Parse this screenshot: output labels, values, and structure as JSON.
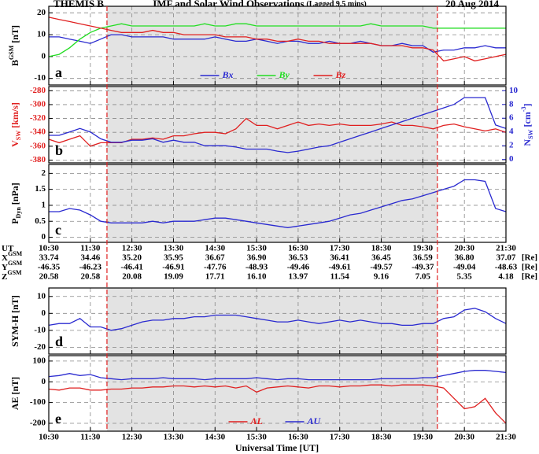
{
  "header": {
    "left": "THEMIS B",
    "title": "IMF and Solar Wind Observations",
    "subtitle": "(Lagged 9.5 mins)",
    "right": "20 Aug 2014"
  },
  "times": {
    "label": "Universal Time [UT]",
    "xlim": [
      10.5,
      21.5
    ],
    "xticks": [
      {
        "value": 10.5,
        "label": "10:30"
      },
      {
        "value": 11.5,
        "label": "11:30"
      },
      {
        "value": 12.5,
        "label": "12:30"
      },
      {
        "value": 13.5,
        "label": "13:30"
      },
      {
        "value": 14.5,
        "label": "14:30"
      },
      {
        "value": 15.5,
        "label": "15:30"
      },
      {
        "value": 16.5,
        "label": "16:30"
      },
      {
        "value": 17.5,
        "label": "17:30"
      },
      {
        "value": 18.5,
        "label": "18:30"
      },
      {
        "value": 19.5,
        "label": "19:30"
      },
      {
        "value": 20.5,
        "label": "20:30"
      },
      {
        "value": 21.5,
        "label": "21:30"
      }
    ],
    "x": [
      10.5,
      10.75,
      11,
      11.25,
      11.5,
      11.75,
      12,
      12.25,
      12.5,
      12.75,
      13,
      13.25,
      13.5,
      13.75,
      14,
      14.25,
      14.5,
      14.75,
      15,
      15.25,
      15.5,
      15.75,
      16,
      16.25,
      16.5,
      16.75,
      17,
      17.25,
      17.5,
      17.75,
      18,
      18.25,
      18.5,
      18.75,
      19,
      19.25,
      19.5,
      19.75,
      20,
      20.25,
      20.5,
      20.75,
      21,
      21.25,
      21.5
    ],
    "shaded_interval": [
      11.9,
      19.85
    ]
  },
  "chart_data": [
    {
      "type": "line",
      "panel": "a",
      "grid": true,
      "ylabel": [
        {
          "text": "B"
        },
        {
          "text": "GSM",
          "pos": "sup"
        },
        {
          "text": " [nT]"
        }
      ],
      "ylim": [
        -13,
        23
      ],
      "yticks": [
        -10,
        0,
        10,
        20
      ],
      "series": [
        {
          "name": "Bx",
          "color": "#2a2ad0",
          "values": [
            9,
            9,
            8,
            7,
            6,
            8,
            10,
            10,
            9,
            9,
            9,
            9,
            8,
            8,
            8,
            8,
            9,
            8,
            7,
            7,
            8,
            7,
            6,
            7,
            7,
            6,
            6,
            7,
            6,
            6,
            7,
            6,
            5,
            5,
            6,
            5,
            5,
            2,
            3,
            3,
            4,
            4,
            5,
            4,
            4
          ]
        },
        {
          "name": "By",
          "color": "#22dd22",
          "values": [
            0,
            1,
            4,
            8,
            11,
            13,
            14,
            15,
            14,
            14,
            14,
            14,
            14,
            14,
            14,
            15,
            14,
            14,
            15,
            15,
            14,
            14,
            14,
            14,
            14,
            14,
            14,
            14,
            14,
            14,
            14,
            15,
            14,
            14,
            14,
            14,
            14,
            13,
            13,
            13,
            13,
            13,
            13,
            13,
            13
          ]
        },
        {
          "name": "Bz",
          "color": "#e02020",
          "values": [
            18,
            17,
            16,
            15,
            14,
            13,
            12,
            11,
            11,
            11,
            12,
            11,
            11,
            10,
            10,
            10,
            10,
            9,
            9,
            9,
            8,
            8,
            7,
            7,
            8,
            7,
            7,
            6,
            6,
            6,
            6,
            6,
            5,
            5,
            5,
            4,
            4,
            3,
            -2,
            -1,
            0,
            -2,
            -1,
            0,
            1
          ]
        }
      ]
    },
    {
      "type": "line",
      "panel": "b",
      "grid": true,
      "ylabel": [
        {
          "text": "V"
        },
        {
          "text": "SW",
          "pos": "sub"
        },
        {
          "text": " [km/s]"
        }
      ],
      "ylabel_color": "#e02020",
      "y2label": [
        {
          "text": "N"
        },
        {
          "text": "SW",
          "pos": "sub"
        },
        {
          "text": " [cm"
        },
        {
          "text": "-3",
          "pos": "sup"
        },
        {
          "text": "]"
        }
      ],
      "y2label_color": "#2a2ad0",
      "ylim": [
        -384,
        -274
      ],
      "yticks": [
        -380,
        -360,
        -340,
        -320,
        -300,
        -280
      ],
      "y2lim": [
        -0.5,
        10.6
      ],
      "y2ticks": [
        0,
        2,
        4,
        6,
        8,
        10
      ],
      "series": [
        {
          "name": "Vsw",
          "color": "#e02020",
          "values": [
            -350,
            -355,
            -350,
            -345,
            -360,
            -355,
            -355,
            -355,
            -350,
            -350,
            -348,
            -350,
            -345,
            -345,
            -342,
            -340,
            -340,
            -342,
            -335,
            -320,
            -330,
            -330,
            -335,
            -330,
            -325,
            -330,
            -328,
            -330,
            -328,
            -330,
            -330,
            -330,
            -328,
            -325,
            -330,
            -330,
            -332,
            -335,
            -330,
            -328,
            -332,
            -335,
            -338,
            -335,
            -340
          ]
        },
        {
          "name": "Nsw",
          "color": "#2a2ad0",
          "axis": "y2",
          "values": [
            3.5,
            3.5,
            4,
            4.5,
            4,
            3,
            2.5,
            2.5,
            2.8,
            2.8,
            3,
            2.5,
            2.8,
            2.5,
            2.5,
            2,
            2,
            2,
            1.8,
            1.5,
            1.5,
            1.5,
            1.2,
            1,
            1.2,
            1.5,
            1.8,
            2,
            2.5,
            3,
            3.5,
            4,
            4.5,
            5,
            5.5,
            6,
            6.5,
            7,
            7.5,
            8,
            9,
            9,
            9,
            5,
            4.5
          ]
        }
      ]
    },
    {
      "type": "line",
      "panel": "c",
      "grid": true,
      "ylabel": [
        {
          "text": "P"
        },
        {
          "text": "Dyn",
          "pos": "sub"
        },
        {
          "text": " [nPa]"
        }
      ],
      "ylim": [
        -0.16,
        2.28
      ],
      "yticks": [
        0,
        0.5,
        1,
        1.5,
        2
      ],
      "series": [
        {
          "name": "Pdyn",
          "color": "#2a2ad0",
          "values": [
            0.8,
            0.8,
            0.9,
            0.85,
            0.7,
            0.5,
            0.45,
            0.45,
            0.45,
            0.45,
            0.5,
            0.45,
            0.5,
            0.5,
            0.5,
            0.55,
            0.6,
            0.6,
            0.55,
            0.5,
            0.45,
            0.4,
            0.35,
            0.3,
            0.35,
            0.4,
            0.45,
            0.5,
            0.6,
            0.7,
            0.75,
            0.85,
            0.95,
            1.05,
            1.15,
            1.2,
            1.3,
            1.4,
            1.5,
            1.6,
            1.8,
            1.8,
            1.75,
            0.9,
            0.8
          ]
        }
      ]
    },
    {
      "type": "line",
      "panel": "d",
      "grid": true,
      "ylabel": [
        {
          "text": "SYM-H [nT]"
        }
      ],
      "ylim": [
        -24,
        15
      ],
      "yticks": [
        -20,
        -10,
        0,
        10
      ],
      "series": [
        {
          "name": "SYM-H",
          "color": "#2a2ad0",
          "values": [
            -7,
            -6,
            -6,
            -3,
            -8,
            -8,
            -10,
            -9,
            -7,
            -5,
            -4,
            -4,
            -3,
            -3,
            -2,
            -2,
            -1,
            -1,
            -1,
            -2,
            -3,
            -4,
            -5,
            -5,
            -4,
            -5,
            -6,
            -5,
            -4,
            -5,
            -4,
            -5,
            -6,
            -6,
            -7,
            -7,
            -6,
            -6,
            -3,
            -2,
            2,
            3,
            1,
            -3,
            -6
          ]
        }
      ]
    },
    {
      "type": "line",
      "panel": "e",
      "grid": true,
      "ylabel": [
        {
          "text": "AE [nT]"
        }
      ],
      "ylim": [
        -238,
        126
      ],
      "yticks": [
        -200,
        -100,
        0,
        100
      ],
      "series": [
        {
          "name": "AL",
          "color": "#e02020",
          "values": [
            -35,
            -40,
            -30,
            -30,
            -40,
            -40,
            -35,
            -35,
            -30,
            -30,
            -25,
            -25,
            -20,
            -20,
            -25,
            -20,
            -25,
            -20,
            -30,
            -20,
            -50,
            -30,
            -25,
            -20,
            -25,
            -30,
            -20,
            -20,
            -25,
            -20,
            -20,
            -15,
            -15,
            -20,
            -15,
            -15,
            -15,
            -20,
            -30,
            -80,
            -130,
            -120,
            -80,
            -150,
            -200
          ]
        },
        {
          "name": "AU",
          "color": "#2a2ad0",
          "values": [
            25,
            30,
            40,
            30,
            35,
            20,
            15,
            10,
            15,
            15,
            15,
            20,
            15,
            15,
            15,
            10,
            15,
            15,
            15,
            15,
            20,
            15,
            10,
            15,
            15,
            10,
            10,
            10,
            10,
            10,
            10,
            10,
            15,
            15,
            15,
            15,
            20,
            20,
            30,
            40,
            50,
            55,
            55,
            50,
            45
          ]
        }
      ]
    }
  ],
  "orbit_table": {
    "unit": "[Re]",
    "rows": [
      {
        "label": [
          {
            "text": "UT"
          }
        ],
        "cells": [
          "10:30",
          "11:30",
          "12:30",
          "13:30",
          "14:30",
          "15:30",
          "16:30",
          "17:30",
          "18:30",
          "19:30",
          "20:30",
          "21:30"
        ],
        "unit": false
      },
      {
        "label": [
          {
            "text": "X"
          },
          {
            "text": "GSM",
            "pos": "sup"
          }
        ],
        "cells": [
          "33.74",
          "34.46",
          "35.20",
          "35.95",
          "36.67",
          "36.90",
          "36.53",
          "36.41",
          "36.45",
          "36.59",
          "36.80",
          "37.07"
        ],
        "unit": true
      },
      {
        "label": [
          {
            "text": "Y"
          },
          {
            "text": "GSM",
            "pos": "sup"
          }
        ],
        "cells": [
          "-46.35",
          "-46.23",
          "-46.41",
          "-46.91",
          "-47.76",
          "-48.93",
          "-49.46",
          "-49.61",
          "-49.57",
          "-49.37",
          "-49.04",
          "-48.63"
        ],
        "unit": true
      },
      {
        "label": [
          {
            "text": "Z"
          },
          {
            "text": "GSM",
            "pos": "sup"
          }
        ],
        "cells": [
          "20.58",
          "20.58",
          "20.08",
          "19.09",
          "17.71",
          "16.10",
          "13.97",
          "11.54",
          "9.16",
          "7.05",
          "5.35",
          "4.18"
        ],
        "unit": true
      }
    ]
  }
}
